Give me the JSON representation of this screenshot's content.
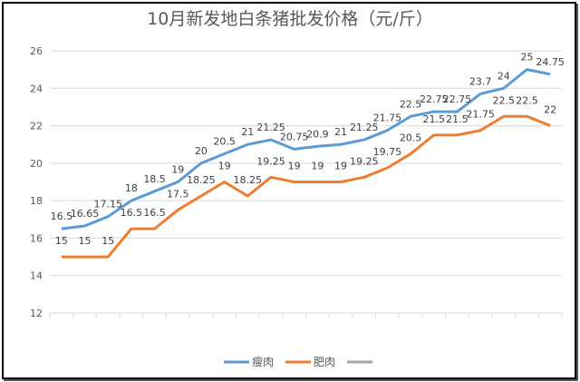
{
  "chart_data": {
    "type": "line",
    "title": "10月新发地白条猪批发价格（元/斤）",
    "xlabel": "",
    "ylabel": "",
    "ylim": [
      12,
      26
    ],
    "yticks": [
      12,
      14,
      16,
      18,
      20,
      22,
      24,
      26
    ],
    "grid": true,
    "legend_position": "bottom",
    "data_labels": true,
    "series": [
      {
        "name": "瘦肉",
        "color": "#5b9bd5",
        "values": [
          16.5,
          16.65,
          17.15,
          18,
          18.5,
          19,
          20,
          20.5,
          21,
          21.25,
          20.75,
          20.9,
          21,
          21.25,
          21.75,
          22.5,
          22.75,
          22.75,
          23.7,
          24,
          25,
          24.75
        ]
      },
      {
        "name": "肥肉",
        "color": "#ed7d31",
        "values": [
          15,
          15,
          15,
          16.5,
          16.5,
          17.5,
          18.25,
          19,
          18.25,
          19.25,
          19,
          19,
          19,
          19.25,
          19.75,
          20.5,
          21.5,
          21.5,
          21.75,
          22.5,
          22.5,
          22
        ]
      },
      {
        "name": "",
        "color": "#a5a5a5",
        "values": []
      }
    ]
  }
}
